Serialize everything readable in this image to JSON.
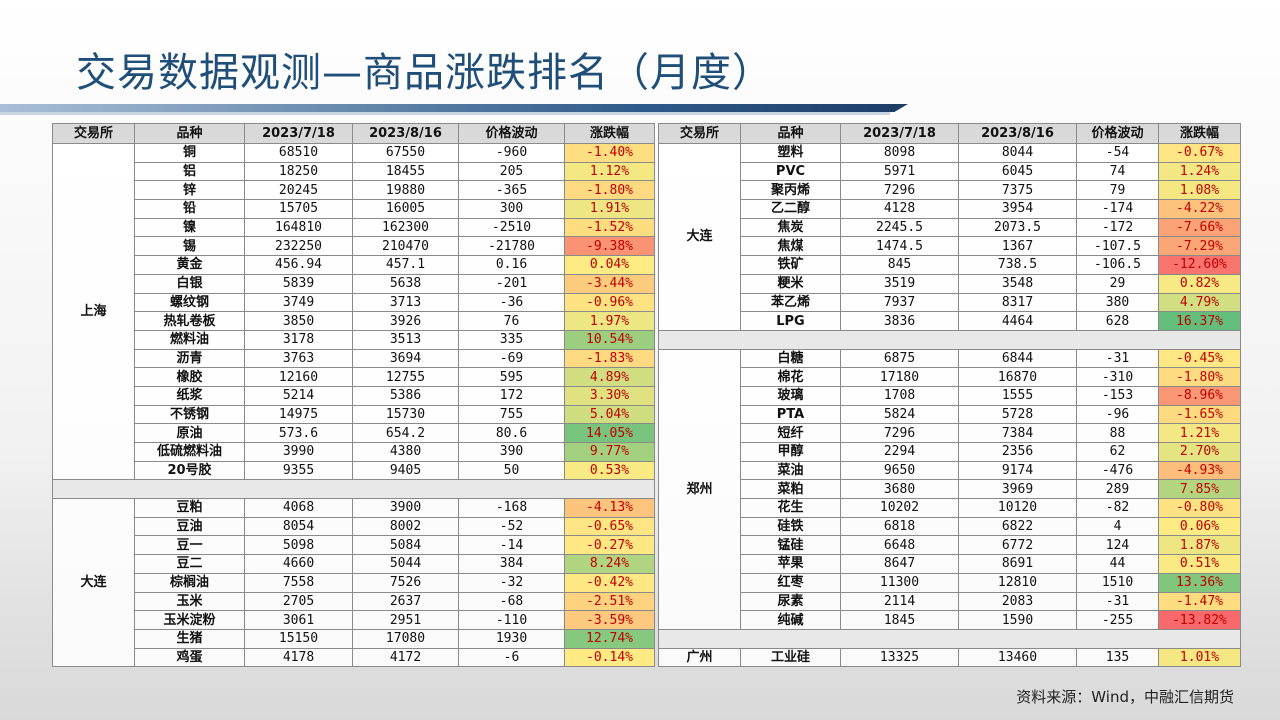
{
  "title": "交易数据观测—商品涨跌排名（月度）",
  "headers": [
    "交易所",
    "品种",
    "2023/7/18",
    "2023/8/16",
    "价格波动",
    "涨跌幅"
  ],
  "left_groups": [
    {
      "exchange": "上海",
      "rows": [
        [
          "铜",
          "68510",
          "67550",
          "-960",
          "-1.40%",
          -1.4
        ],
        [
          "铝",
          "18250",
          "18455",
          "205",
          "1.12%",
          1.12
        ],
        [
          "锌",
          "20245",
          "19880",
          "-365",
          "-1.80%",
          -1.8
        ],
        [
          "铅",
          "15705",
          "16005",
          "300",
          "1.91%",
          1.91
        ],
        [
          "镍",
          "164810",
          "162300",
          "-2510",
          "-1.52%",
          -1.52
        ],
        [
          "锡",
          "232250",
          "210470",
          "-21780",
          "-9.38%",
          -9.38
        ],
        [
          "黄金",
          "456.94",
          "457.1",
          "0.16",
          "0.04%",
          0.04
        ],
        [
          "白银",
          "5839",
          "5638",
          "-201",
          "-3.44%",
          -3.44
        ],
        [
          "螺纹钢",
          "3749",
          "3713",
          "-36",
          "-0.96%",
          -0.96
        ],
        [
          "热轧卷板",
          "3850",
          "3926",
          "76",
          "1.97%",
          1.97
        ],
        [
          "燃料油",
          "3178",
          "3513",
          "335",
          "10.54%",
          10.54
        ],
        [
          "沥青",
          "3763",
          "3694",
          "-69",
          "-1.83%",
          -1.83
        ],
        [
          "橡胶",
          "12160",
          "12755",
          "595",
          "4.89%",
          4.89
        ],
        [
          "纸浆",
          "5214",
          "5386",
          "172",
          "3.30%",
          3.3
        ],
        [
          "不锈钢",
          "14975",
          "15730",
          "755",
          "5.04%",
          5.04
        ],
        [
          "原油",
          "573.6",
          "654.2",
          "80.6",
          "14.05%",
          14.05
        ],
        [
          "低硫燃料油",
          "3990",
          "4380",
          "390",
          "9.77%",
          9.77
        ],
        [
          "20号胶",
          "9355",
          "9405",
          "50",
          "0.53%",
          0.53
        ]
      ]
    },
    {
      "exchange": "大连",
      "rows": [
        [
          "豆粕",
          "4068",
          "3900",
          "-168",
          "-4.13%",
          -4.13
        ],
        [
          "豆油",
          "8054",
          "8002",
          "-52",
          "-0.65%",
          -0.65
        ],
        [
          "豆一",
          "5098",
          "5084",
          "-14",
          "-0.27%",
          -0.27
        ],
        [
          "豆二",
          "4660",
          "5044",
          "384",
          "8.24%",
          8.24
        ],
        [
          "棕榈油",
          "7558",
          "7526",
          "-32",
          "-0.42%",
          -0.42
        ],
        [
          "玉米",
          "2705",
          "2637",
          "-68",
          "-2.51%",
          -2.51
        ],
        [
          "玉米淀粉",
          "3061",
          "2951",
          "-110",
          "-3.59%",
          -3.59
        ],
        [
          "生猪",
          "15150",
          "17080",
          "1930",
          "12.74%",
          12.74
        ],
        [
          "鸡蛋",
          "4178",
          "4172",
          "-6",
          "-0.14%",
          -0.14
        ]
      ]
    }
  ],
  "right_groups": [
    {
      "exchange": "大连",
      "rows": [
        [
          "塑料",
          "8098",
          "8044",
          "-54",
          "-0.67%",
          -0.67
        ],
        [
          "PVC",
          "5971",
          "6045",
          "74",
          "1.24%",
          1.24
        ],
        [
          "聚丙烯",
          "7296",
          "7375",
          "79",
          "1.08%",
          1.08
        ],
        [
          "乙二醇",
          "4128",
          "3954",
          "-174",
          "-4.22%",
          -4.22
        ],
        [
          "焦炭",
          "2245.5",
          "2073.5",
          "-172",
          "-7.66%",
          -7.66
        ],
        [
          "焦煤",
          "1474.5",
          "1367",
          "-107.5",
          "-7.29%",
          -7.29
        ],
        [
          "铁矿",
          "845",
          "738.5",
          "-106.5",
          "-12.60%",
          -12.6
        ],
        [
          "粳米",
          "3519",
          "3548",
          "29",
          "0.82%",
          0.82
        ],
        [
          "苯乙烯",
          "7937",
          "8317",
          "380",
          "4.79%",
          4.79
        ],
        [
          "LPG",
          "3836",
          "4464",
          "628",
          "16.37%",
          16.37
        ]
      ]
    },
    {
      "exchange": "郑州",
      "rows": [
        [
          "白糖",
          "6875",
          "6844",
          "-31",
          "-0.45%",
          -0.45
        ],
        [
          "棉花",
          "17180",
          "16870",
          "-310",
          "-1.80%",
          -1.8
        ],
        [
          "玻璃",
          "1708",
          "1555",
          "-153",
          "-8.96%",
          -8.96
        ],
        [
          "PTA",
          "5824",
          "5728",
          "-96",
          "-1.65%",
          -1.65
        ],
        [
          "短纤",
          "7296",
          "7384",
          "88",
          "1.21%",
          1.21
        ],
        [
          "甲醇",
          "2294",
          "2356",
          "62",
          "2.70%",
          2.7
        ],
        [
          "菜油",
          "9650",
          "9174",
          "-476",
          "-4.93%",
          -4.93
        ],
        [
          "菜粕",
          "3680",
          "3969",
          "289",
          "7.85%",
          7.85
        ],
        [
          "花生",
          "10202",
          "10120",
          "-82",
          "-0.80%",
          -0.8
        ],
        [
          "硅铁",
          "6818",
          "6822",
          "4",
          "0.06%",
          0.06
        ],
        [
          "锰硅",
          "6648",
          "6772",
          "124",
          "1.87%",
          1.87
        ],
        [
          "苹果",
          "8647",
          "8691",
          "44",
          "0.51%",
          0.51
        ],
        [
          "红枣",
          "11300",
          "12810",
          "1510",
          "13.36%",
          13.36
        ],
        [
          "尿素",
          "2114",
          "2083",
          "-31",
          "-1.47%",
          -1.47
        ],
        [
          "纯碱",
          "1845",
          "1590",
          "-255",
          "-13.82%",
          -13.82
        ]
      ]
    },
    {
      "exchange": "广州",
      "rows": [
        [
          "工业硅",
          "13325",
          "13460",
          "135",
          "1.01%",
          1.01
        ]
      ]
    }
  ],
  "source": "资料来源：Wind，中融汇信期货",
  "colors": {
    "title": "#1f4e79",
    "red": "#f8696b",
    "yellow": "#ffeb84",
    "green": "#63be7b"
  }
}
